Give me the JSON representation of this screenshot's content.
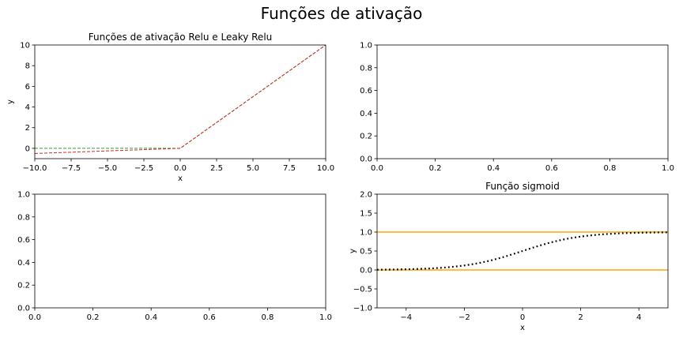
{
  "figure": {
    "suptitle": "Funções de ativação"
  },
  "chart_data": [
    {
      "type": "line",
      "panel": "top-left",
      "title": "Funções de ativação Relu e Leaky Relu",
      "xlabel": "x",
      "ylabel": "y",
      "xlim": [
        -10,
        10
      ],
      "ylim": [
        -1,
        10
      ],
      "xticks": [
        "−10.0",
        "−7.5",
        "−5.0",
        "−2.5",
        "0.0",
        "2.5",
        "5.0",
        "7.5",
        "10.0"
      ],
      "xtick_values": [
        -10,
        -7.5,
        -5,
        -2.5,
        0,
        2.5,
        5,
        7.5,
        10
      ],
      "yticks": [
        "0",
        "2",
        "4",
        "6",
        "8",
        "10"
      ],
      "ytick_values": [
        0,
        2,
        4,
        6,
        8,
        10
      ],
      "series": [
        {
          "style": "dashed",
          "color": "#2ca02c",
          "x": [
            -10,
            0,
            10
          ],
          "y": [
            0,
            0,
            10
          ]
        },
        {
          "style": "dashed",
          "color": "#d62728",
          "x": [
            -10,
            0,
            10
          ],
          "y": [
            -0.5,
            0,
            10
          ]
        }
      ]
    },
    {
      "type": "line",
      "panel": "top-right",
      "title": "",
      "xlim": [
        0,
        1
      ],
      "ylim": [
        0,
        1
      ],
      "xticks": [
        "0.0",
        "0.2",
        "0.4",
        "0.6",
        "0.8",
        "1.0"
      ],
      "xtick_values": [
        0,
        0.2,
        0.4,
        0.6,
        0.8,
        1
      ],
      "yticks": [
        "0.0",
        "0.2",
        "0.4",
        "0.6",
        "0.8",
        "1.0"
      ],
      "ytick_values": [
        0,
        0.2,
        0.4,
        0.6,
        0.8,
        1
      ],
      "series": []
    },
    {
      "type": "line",
      "panel": "bottom-left",
      "title": "",
      "xlim": [
        0,
        1
      ],
      "ylim": [
        0,
        1
      ],
      "xticks": [
        "0.0",
        "0.2",
        "0.4",
        "0.6",
        "0.8",
        "1.0"
      ],
      "xtick_values": [
        0,
        0.2,
        0.4,
        0.6,
        0.8,
        1
      ],
      "yticks": [
        "0.0",
        "0.2",
        "0.4",
        "0.6",
        "0.8",
        "1.0"
      ],
      "ytick_values": [
        0,
        0.2,
        0.4,
        0.6,
        0.8,
        1
      ],
      "series": []
    },
    {
      "type": "line",
      "panel": "bottom-right",
      "title": "Função sigmoid",
      "xlabel": "x",
      "ylabel": "y",
      "xlim": [
        -5,
        5
      ],
      "ylim": [
        -1,
        2
      ],
      "xticks": [
        "−4",
        "−2",
        "0",
        "2",
        "4"
      ],
      "xtick_values": [
        -4,
        -2,
        0,
        2,
        4
      ],
      "yticks": [
        "−1.0",
        "−0.5",
        "0.0",
        "0.5",
        "1.0",
        "1.5",
        "2.0"
      ],
      "ytick_values": [
        -1,
        -0.5,
        0,
        0.5,
        1,
        1.5,
        2
      ],
      "hlines": [
        {
          "y": 1,
          "color": "#ffa500"
        },
        {
          "y": 0,
          "color": "#ffa500"
        }
      ],
      "series": [
        {
          "style": "dotted",
          "color": "#000000",
          "function": "sigmoid",
          "x": [
            -5,
            -4,
            -3,
            -2,
            -1,
            0,
            1,
            2,
            3,
            4,
            5
          ],
          "y": [
            0.007,
            0.018,
            0.047,
            0.119,
            0.269,
            0.5,
            0.731,
            0.881,
            0.953,
            0.982,
            0.993
          ]
        }
      ]
    }
  ]
}
